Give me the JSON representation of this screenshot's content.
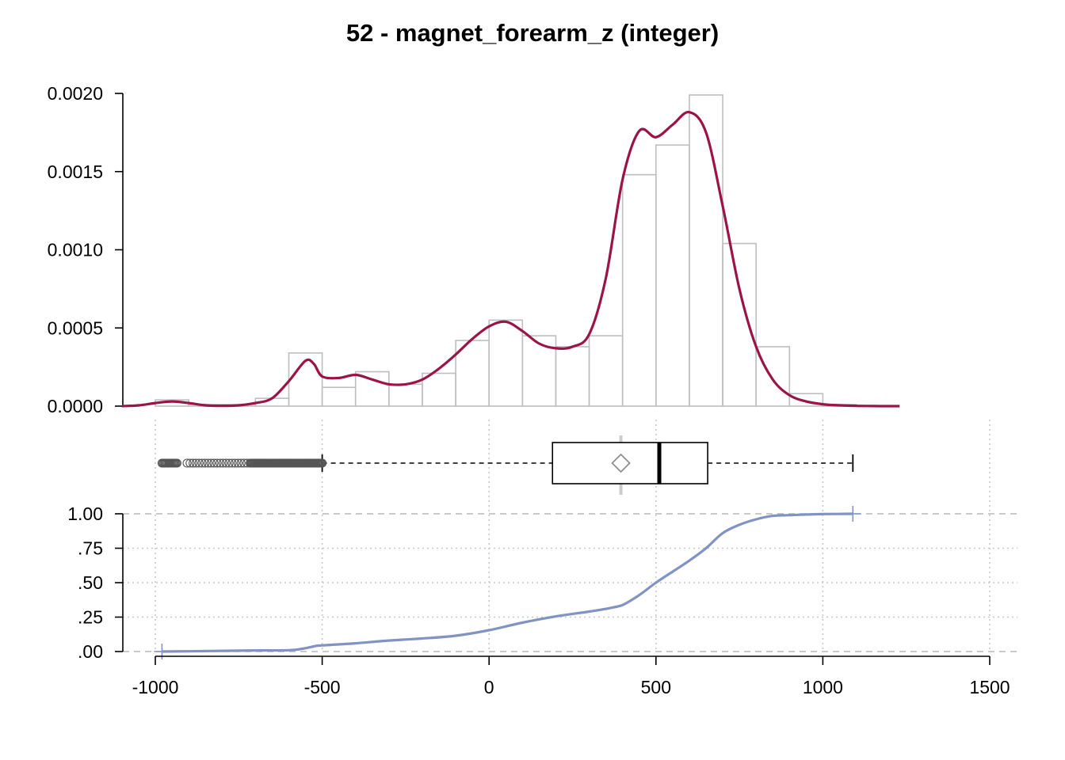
{
  "chart_data": [
    {
      "type": "bar",
      "title": "52 - magnet_forearm_z (integer)",
      "subtype": "histogram with density curve",
      "bin_width": 100,
      "bins": [
        {
          "x0": -1000,
          "x1": -900,
          "y": 4e-05
        },
        {
          "x0": -900,
          "x1": -800,
          "y": 1e-05
        },
        {
          "x0": -800,
          "x1": -700,
          "y": 1e-05
        },
        {
          "x0": -700,
          "x1": -600,
          "y": 5e-05
        },
        {
          "x0": -600,
          "x1": -500,
          "y": 0.00034
        },
        {
          "x0": -500,
          "x1": -400,
          "y": 0.00012
        },
        {
          "x0": -400,
          "x1": -300,
          "y": 0.00022
        },
        {
          "x0": -300,
          "x1": -200,
          "y": 0.00014
        },
        {
          "x0": -200,
          "x1": -100,
          "y": 0.00021
        },
        {
          "x0": -100,
          "x1": 0,
          "y": 0.00042
        },
        {
          "x0": 0,
          "x1": 100,
          "y": 0.00055
        },
        {
          "x0": 100,
          "x1": 200,
          "y": 0.00045
        },
        {
          "x0": 200,
          "x1": 300,
          "y": 0.00038
        },
        {
          "x0": 300,
          "x1": 400,
          "y": 0.00045
        },
        {
          "x0": 400,
          "x1": 500,
          "y": 0.00148
        },
        {
          "x0": 500,
          "x1": 600,
          "y": 0.00167
        },
        {
          "x0": 600,
          "x1": 700,
          "y": 0.00199
        },
        {
          "x0": 700,
          "x1": 800,
          "y": 0.00104
        },
        {
          "x0": 800,
          "x1": 900,
          "y": 0.00038
        },
        {
          "x0": 900,
          "x1": 1000,
          "y": 8e-05
        },
        {
          "x0": 1000,
          "x1": 1100,
          "y": 1e-05
        }
      ],
      "density": {
        "x": [
          -1100,
          -1050,
          -1000,
          -950,
          -900,
          -850,
          -800,
          -750,
          -700,
          -650,
          -600,
          -550,
          -525,
          -500,
          -450,
          -400,
          -350,
          -300,
          -250,
          -200,
          -150,
          -100,
          -50,
          0,
          50,
          100,
          150,
          200,
          250,
          300,
          350,
          400,
          450,
          500,
          550,
          600,
          650,
          700,
          750,
          800,
          850,
          900,
          950,
          1000,
          1050,
          1100,
          1150,
          1200,
          1230
        ],
        "y": [
          0.0,
          5e-06,
          2e-05,
          3e-05,
          2e-05,
          5e-06,
          2e-06,
          5e-06,
          2e-05,
          5e-05,
          0.00016,
          0.00029,
          0.00027,
          0.00019,
          0.00018,
          0.0002,
          0.00017,
          0.00014,
          0.00014,
          0.00017,
          0.00024,
          0.00033,
          0.00043,
          0.00051,
          0.00054,
          0.00048,
          0.0004,
          0.00037,
          0.00038,
          0.00046,
          0.00082,
          0.00145,
          0.00176,
          0.00172,
          0.0018,
          0.00188,
          0.00175,
          0.00128,
          0.00075,
          0.00038,
          0.00017,
          7e-05,
          3e-05,
          1.2e-05,
          5e-06,
          2e-06,
          5e-07,
          0.0,
          0.0
        ]
      },
      "y_ticks": [
        "0.0000",
        "0.0005",
        "0.0010",
        "0.0015",
        "0.0020"
      ],
      "y_tick_values": [
        0,
        0.0005,
        0.001,
        0.0015,
        0.002
      ],
      "xlim": [
        -1100,
        1230
      ],
      "ylim": [
        0,
        0.002
      ],
      "colors": {
        "bar_stroke": "#bebebe",
        "density": "#9b1447"
      }
    },
    {
      "type": "boxplot",
      "min_whisker": -500,
      "q1": 190,
      "median": 510,
      "q3": 655,
      "max_whisker": 1090,
      "mean": 395,
      "outliers_range": [
        -980,
        -500
      ],
      "outliers_dense_from": -715,
      "colors": {
        "box": "#000000",
        "mean_marker": "#909090",
        "mean_line": "#cccccc"
      }
    },
    {
      "type": "line",
      "subtype": "empirical cumulative distribution",
      "x": [
        -980,
        -900,
        -800,
        -700,
        -600,
        -560,
        -520,
        -500,
        -400,
        -300,
        -200,
        -100,
        0,
        100,
        200,
        300,
        350,
        390,
        410,
        450,
        500,
        550,
        600,
        650,
        700,
        750,
        800,
        850,
        900,
        950,
        1000,
        1050,
        1090
      ],
      "y": [
        0.0,
        0.002,
        0.005,
        0.008,
        0.01,
        0.02,
        0.04,
        0.045,
        0.06,
        0.08,
        0.095,
        0.115,
        0.155,
        0.21,
        0.255,
        0.29,
        0.31,
        0.33,
        0.35,
        0.41,
        0.5,
        0.58,
        0.66,
        0.75,
        0.86,
        0.92,
        0.96,
        0.985,
        0.99,
        0.995,
        0.998,
        0.999,
        1.0
      ],
      "y_ticks": [
        "1.00",
        ".75",
        ".50",
        ".25",
        ".00"
      ],
      "y_tick_values": [
        1,
        0.75,
        0.5,
        0.25,
        0
      ],
      "x_ticks": [
        "-1000",
        "-500",
        "0",
        "500",
        "1000",
        "1500"
      ],
      "x_tick_values": [
        -1000,
        -500,
        0,
        500,
        1000,
        1500
      ],
      "grid": true,
      "colors": {
        "line": "#8193c4"
      }
    }
  ]
}
